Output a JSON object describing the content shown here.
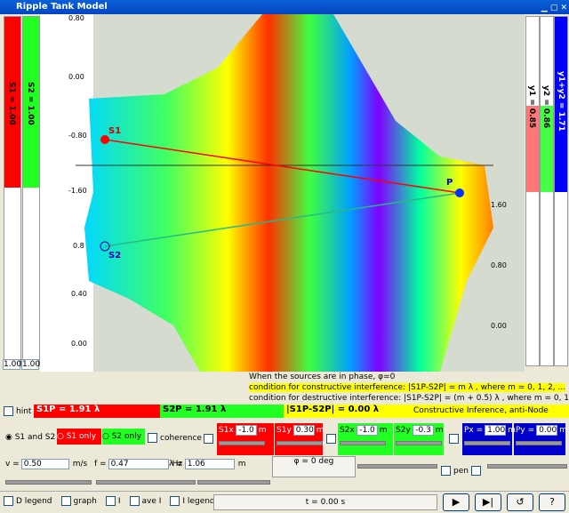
{
  "window": {
    "title": "Ripple Tank Model"
  },
  "left_sliders": [
    {
      "label": "S1 = 1.00",
      "box": "1.00"
    },
    {
      "label": "S2 = 1.00",
      "box": "1.00"
    }
  ],
  "right_sliders": [
    {
      "label": "y1 = 0.85"
    },
    {
      "label": "y2 = 0.86"
    },
    {
      "label": "y1+y2 = 1.71"
    }
  ],
  "plot": {
    "left_axis_top": [
      "0.80",
      "0.00",
      "-0.80",
      "-1.60"
    ],
    "left_axis_bottom": [
      "0.8",
      "0.40",
      "0.00"
    ],
    "right_axis": [
      "1.60",
      "0.80",
      "0.00"
    ],
    "points": [
      "S1",
      "S2",
      "P"
    ]
  },
  "info": {
    "heading": "When the sources are in phase, φ=0",
    "constructive": "condition for constructive interference: |S1P-S2P| = m λ , where m = 0, 1, 2, ...",
    "destructive": "condition for destructive interference: |S1P-S2P| = (m + 0.5) λ , where m = 0, 1, 2, ..."
  },
  "hint_row": {
    "hint": "hint",
    "s1p": "S1P  = 1.91 λ",
    "s2p": "S2P = 1.91 λ",
    "diff": "|S1P-S2P|  = 0.00 λ",
    "result": "Constructive Inference, anti-Node"
  },
  "source_row": {
    "both": "S1 and S2",
    "s1_only": "S1 only",
    "s2_only": "S2 only",
    "coherence": "coherence",
    "fields": [
      {
        "label": "S1x",
        "value": "-1.0",
        "unit": "m"
      },
      {
        "label": "S1y",
        "value": "0.30",
        "unit": "m"
      },
      {
        "label": "S2x",
        "value": "-1.0",
        "unit": "m"
      },
      {
        "label": "S2y",
        "value": "-0.3",
        "unit": "m"
      },
      {
        "label": "Px =",
        "value": "1.00",
        "unit": "m"
      },
      {
        "label": "Py =",
        "value": "0.00",
        "unit": "m"
      }
    ]
  },
  "wave_row": {
    "fields": [
      {
        "label": "v =",
        "value": "0.50",
        "unit": "m/s"
      },
      {
        "label": "f =",
        "value": "0.47",
        "unit": "Hz"
      },
      {
        "label": "λ =",
        "value": "1.06",
        "unit": "m"
      }
    ],
    "phase": "φ = 0 deg",
    "pen": "pen"
  },
  "bottom_bar": {
    "checks": [
      "D legend",
      "graph",
      "I",
      "ave I",
      "I legend"
    ],
    "time": "t = 0.00 s"
  }
}
